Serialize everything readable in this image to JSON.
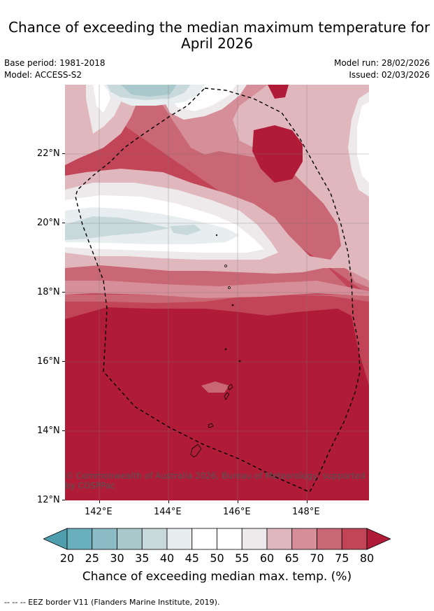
{
  "title_line1": "Chance of exceeding the median maximum temperature for",
  "title_line2": "April 2026",
  "base_period": "Base period: 1981-2018",
  "model": "Model: ACCESS-S2",
  "model_run": "Model run: 28/02/2026",
  "issued": "Issued: 02/03/2026",
  "lat_labels": [
    "22°N",
    "20°N",
    "18°N",
    "16°N",
    "14°N",
    "12°N"
  ],
  "lon_labels": [
    "142°E",
    "144°E",
    "146°E",
    "148°E"
  ],
  "copyright": "© Commonwealth of Australia 2026, Bureau of Meteorology, supported by COSPPac",
  "colorbar": {
    "ticks": [
      "20",
      "25",
      "30",
      "35",
      "40",
      "45",
      "50",
      "55",
      "60",
      "65",
      "70",
      "75",
      "80"
    ],
    "colors": [
      "#4e9ead",
      "#6aafbe",
      "#8bbcc6",
      "#a9c9cd",
      "#c8d9dc",
      "#e8eef0",
      "#ffffff",
      "#ffffff",
      "#eeeaec",
      "#e0b7bd",
      "#d68e98",
      "#c96774",
      "#c14556",
      "#b01c37"
    ],
    "title": "Chance of exceeding median max. temp. (%)"
  },
  "footer": "--  --  -- EEZ border V11 (Flanders Marine Institute, 2019)."
}
